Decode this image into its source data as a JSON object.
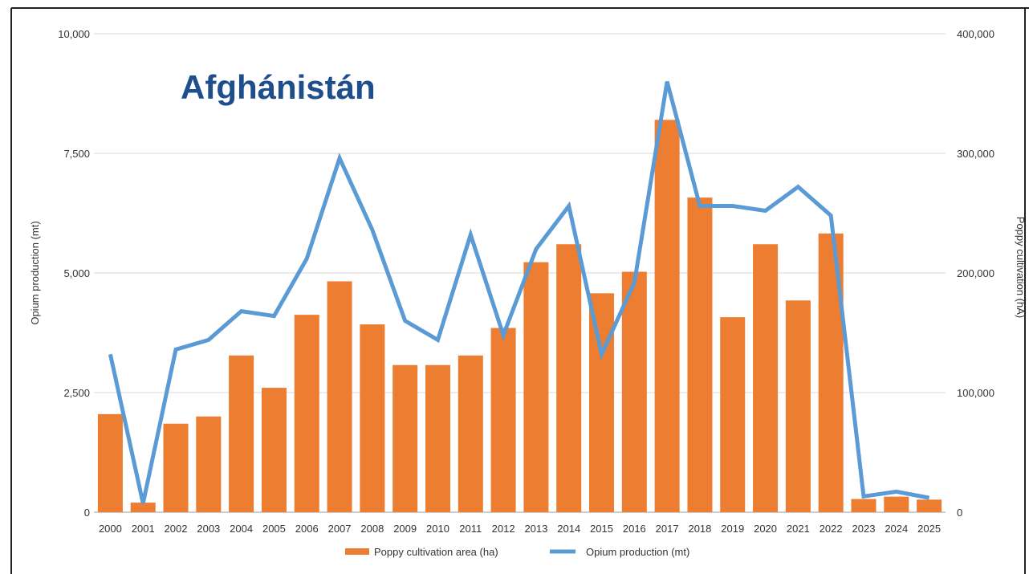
{
  "chart_data": {
    "type": "bar+line",
    "title": "Afghánistán",
    "categories": [
      "2000",
      "2001",
      "2002",
      "2003",
      "2004",
      "2005",
      "2006",
      "2007",
      "2008",
      "2009",
      "2010",
      "2011",
      "2012",
      "2013",
      "2014",
      "2015",
      "2016",
      "2017",
      "2018",
      "2019",
      "2020",
      "2021",
      "2022",
      "2023",
      "2024",
      "2025"
    ],
    "series": [
      {
        "name": "Poppy cultivation area (ha)",
        "type": "bar",
        "axis": "right",
        "color": "#ed7d31",
        "values": [
          82000,
          8000,
          74000,
          80000,
          131000,
          104000,
          165000,
          193000,
          157000,
          123000,
          123000,
          131000,
          154000,
          209000,
          224000,
          183000,
          201000,
          328000,
          263000,
          163000,
          224000,
          177000,
          233000,
          11000,
          13000,
          10500
        ]
      },
      {
        "name": "Opium production (mt)",
        "type": "line",
        "axis": "left",
        "color": "#5b9bd5",
        "values": [
          3300,
          185,
          3400,
          3600,
          4200,
          4100,
          5300,
          7400,
          5900,
          4000,
          3600,
          5800,
          3700,
          5500,
          6400,
          3300,
          4800,
          9000,
          6400,
          6400,
          6300,
          6800,
          6200,
          330,
          430,
          300
        ]
      }
    ],
    "ylabel": "Opium production (mt)",
    "y2label": "Poppy cultivation (hA)",
    "ylim": [
      0,
      10000
    ],
    "y2lim": [
      0,
      400000
    ],
    "yticks": [
      "0",
      "2,500",
      "5,000",
      "7,500",
      "10,000"
    ],
    "y2ticks": [
      "0",
      "100,000",
      "200,000",
      "300,000",
      "400,000"
    ],
    "grid": true,
    "legend": "bottom-center"
  }
}
